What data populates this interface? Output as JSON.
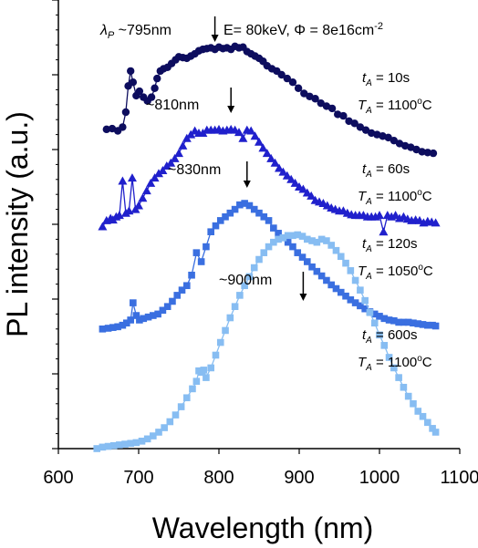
{
  "chart_data": {
    "type": "line",
    "xlabel": "Wavelength (nm)",
    "ylabel": "PL intensity (a.u.)",
    "xlim": [
      600,
      1100
    ],
    "xticks": [
      "600",
      "700",
      "800",
      "900",
      "1000",
      "1100"
    ],
    "ylim": [
      0,
      6
    ],
    "grid": false,
    "legend": "none",
    "header_annotation": {
      "symbol": "λ",
      "subscript": "P",
      "text": " ~795nm",
      "rest": "E= 80keV, Φ = 8e16cm",
      "superscript": "-2",
      "arrow_x": 795
    },
    "series": [
      {
        "color": "#0d0d5e",
        "marker": "circle",
        "peak_label": "",
        "condition_t": "= 10s",
        "condition_T": "= 1100",
        "x": [
          660,
          667,
          674,
          680,
          684,
          687,
          690,
          693,
          697,
          701,
          706,
          711,
          716,
          720,
          723,
          727,
          731,
          736,
          741,
          746,
          750,
          755,
          760,
          765,
          770,
          775,
          780,
          785,
          790,
          795,
          800,
          805,
          810,
          815,
          820,
          825,
          830,
          835,
          840,
          845,
          850,
          855,
          860,
          866,
          872,
          878,
          885,
          892,
          899,
          906,
          913,
          920,
          927,
          934,
          941,
          948,
          955,
          962,
          969,
          976,
          983,
          990,
          997,
          1004,
          1011,
          1018,
          1025,
          1032,
          1039,
          1046,
          1053,
          1060,
          1067
        ],
        "y": [
          4.27,
          4.28,
          4.25,
          4.3,
          4.5,
          4.85,
          5.05,
          4.9,
          4.72,
          4.78,
          4.7,
          4.65,
          4.7,
          4.82,
          4.95,
          5.05,
          5.08,
          5.1,
          5.15,
          5.2,
          5.24,
          5.23,
          5.22,
          5.25,
          5.28,
          5.32,
          5.34,
          5.35,
          5.36,
          5.34,
          5.37,
          5.35,
          5.36,
          5.34,
          5.38,
          5.36,
          5.37,
          5.31,
          5.28,
          5.25,
          5.22,
          5.18,
          5.12,
          5.08,
          5.05,
          5.0,
          4.95,
          4.9,
          4.82,
          4.75,
          4.71,
          4.68,
          4.62,
          4.58,
          4.55,
          4.47,
          4.45,
          4.38,
          4.35,
          4.3,
          4.26,
          4.22,
          4.2,
          4.18,
          4.16,
          4.12,
          4.08,
          4.05,
          4.03,
          4.0,
          3.97,
          3.96,
          3.95
        ]
      },
      {
        "color": "#2020cc",
        "marker": "triangle",
        "peak_label": "~810nm",
        "peak_arrow_x": 815,
        "condition_t": "= 60s",
        "condition_T": "= 1100",
        "x": [
          655,
          660,
          665,
          668,
          672,
          676,
          680,
          684,
          688,
          692,
          696,
          700,
          705,
          710,
          715,
          720,
          725,
          730,
          735,
          740,
          745,
          750,
          755,
          760,
          765,
          770,
          775,
          780,
          785,
          790,
          795,
          800,
          805,
          810,
          815,
          820,
          825,
          830,
          835,
          840,
          845,
          850,
          855,
          860,
          865,
          870,
          875,
          880,
          885,
          890,
          895,
          900,
          905,
          910,
          915,
          920,
          925,
          930,
          935,
          940,
          945,
          950,
          955,
          960,
          965,
          970,
          975,
          980,
          985,
          990,
          995,
          1000,
          1005,
          1010,
          1015,
          1020,
          1025,
          1030,
          1035,
          1040,
          1045,
          1050,
          1055,
          1060,
          1065,
          1070
        ],
        "y": [
          2.97,
          3.05,
          3.08,
          3.06,
          3.1,
          3.12,
          3.58,
          3.15,
          3.18,
          3.62,
          3.2,
          3.25,
          3.35,
          3.45,
          3.55,
          3.62,
          3.68,
          3.72,
          3.78,
          3.82,
          3.88,
          3.95,
          4.05,
          4.15,
          4.2,
          4.25,
          4.22,
          4.22,
          4.26,
          4.26,
          4.26,
          4.27,
          4.25,
          4.26,
          4.27,
          4.26,
          4.23,
          4.15,
          4.26,
          4.25,
          4.18,
          4.1,
          4.02,
          3.95,
          3.88,
          3.82,
          3.75,
          3.7,
          3.65,
          3.6,
          3.55,
          3.5,
          3.47,
          3.42,
          3.38,
          3.32,
          3.3,
          3.28,
          3.25,
          3.22,
          3.2,
          3.18,
          3.18,
          3.15,
          3.13,
          3.12,
          3.12,
          3.12,
          3.1,
          3.1,
          3.1,
          3.12,
          2.9,
          3.12,
          3.1,
          3.12,
          3.08,
          3.1,
          3.07,
          3.05,
          3.06,
          3.05,
          3.02,
          3.04,
          3.03,
          3.02
        ]
      },
      {
        "color": "#3a6fe0",
        "marker": "square",
        "peak_label": "~830nm",
        "peak_arrow_x": 835,
        "condition_t": "= 120s",
        "condition_T": "= 1050",
        "x": [
          655,
          662,
          668,
          674,
          680,
          685,
          690,
          693,
          697,
          701,
          706,
          712,
          718,
          724,
          730,
          736,
          742,
          748,
          754,
          760,
          766,
          772,
          778,
          784,
          790,
          796,
          802,
          808,
          814,
          820,
          826,
          832,
          838,
          844,
          850,
          856,
          862,
          868,
          874,
          880,
          886,
          892,
          898,
          904,
          910,
          916,
          922,
          928,
          934,
          940,
          946,
          952,
          958,
          964,
          970,
          976,
          982,
          988,
          994,
          1000,
          1006,
          1012,
          1018,
          1024,
          1030,
          1036,
          1042,
          1048,
          1054,
          1060,
          1066,
          1070
        ],
        "y": [
          1.6,
          1.61,
          1.62,
          1.63,
          1.65,
          1.68,
          1.72,
          1.95,
          1.78,
          1.72,
          1.74,
          1.76,
          1.78,
          1.8,
          1.85,
          1.9,
          1.97,
          2.05,
          2.12,
          2.18,
          2.32,
          2.62,
          2.5,
          2.7,
          2.9,
          2.98,
          3.05,
          3.1,
          3.15,
          3.2,
          3.26,
          3.28,
          3.25,
          3.2,
          3.15,
          3.1,
          3.05,
          2.95,
          2.88,
          2.82,
          2.76,
          2.7,
          2.62,
          2.56,
          2.5,
          2.43,
          2.37,
          2.31,
          2.25,
          2.19,
          2.14,
          2.09,
          2.04,
          1.99,
          1.95,
          1.91,
          1.87,
          1.83,
          1.8,
          1.77,
          1.74,
          1.72,
          1.71,
          1.69,
          1.69,
          1.69,
          1.68,
          1.67,
          1.66,
          1.65,
          1.65,
          1.64
        ]
      },
      {
        "color": "#87bdf2",
        "marker": "square",
        "peak_label": "~900nm",
        "peak_arrow_x": 905,
        "condition_t": "= 600s",
        "condition_T": "= 1100",
        "x": [
          648,
          655,
          662,
          669,
          676,
          683,
          690,
          697,
          704,
          711,
          718,
          725,
          732,
          739,
          746,
          753,
          760,
          767,
          772,
          775,
          778,
          781,
          784,
          790,
          796,
          802,
          808,
          814,
          820,
          826,
          832,
          838,
          844,
          850,
          856,
          862,
          868,
          874,
          880,
          886,
          892,
          898,
          904,
          910,
          916,
          922,
          928,
          934,
          940,
          946,
          952,
          958,
          964,
          970,
          976,
          982,
          988,
          994,
          1000,
          1006,
          1012,
          1018,
          1024,
          1030,
          1036,
          1042,
          1048,
          1054,
          1060,
          1066,
          1070
        ],
        "y": [
          0.0,
          0.02,
          0.03,
          0.04,
          0.05,
          0.06,
          0.07,
          0.08,
          0.1,
          0.13,
          0.17,
          0.22,
          0.28,
          0.36,
          0.45,
          0.56,
          0.68,
          0.8,
          0.9,
          1.04,
          1.02,
          1.05,
          0.95,
          1.08,
          1.25,
          1.42,
          1.58,
          1.75,
          1.9,
          2.05,
          2.18,
          2.3,
          2.42,
          2.53,
          2.62,
          2.7,
          2.76,
          2.8,
          2.82,
          2.85,
          2.85,
          2.86,
          2.84,
          2.8,
          2.78,
          2.76,
          2.8,
          2.78,
          2.72,
          2.65,
          2.57,
          2.48,
          2.38,
          2.25,
          2.12,
          1.98,
          1.82,
          1.68,
          1.52,
          1.38,
          1.22,
          1.08,
          0.95,
          0.82,
          0.7,
          0.6,
          0.5,
          0.43,
          0.35,
          0.27,
          0.22
        ]
      }
    ]
  }
}
